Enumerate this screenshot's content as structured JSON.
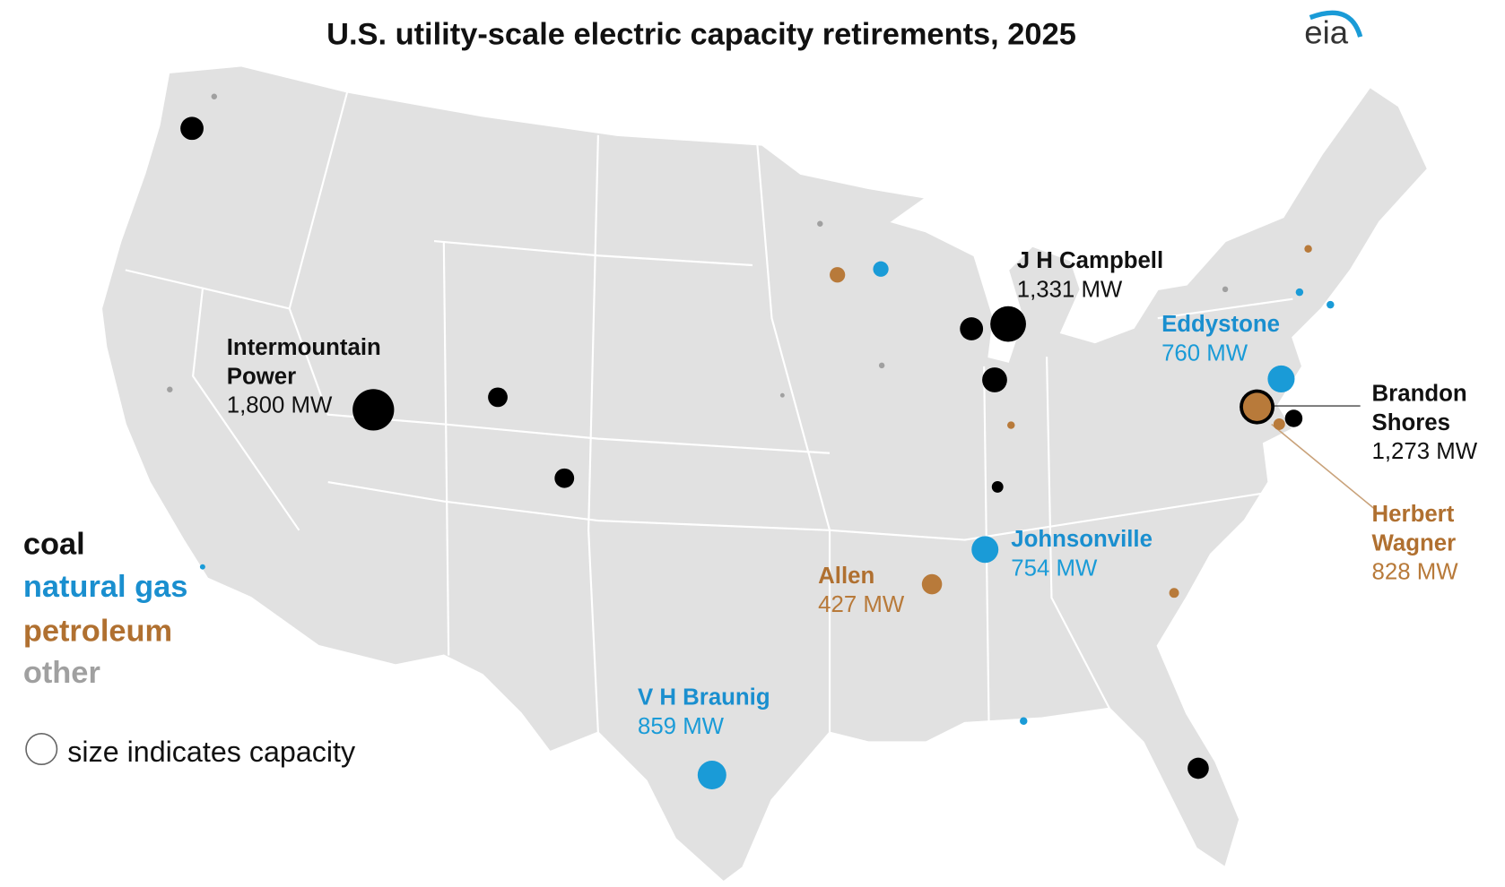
{
  "title": "U.S. utility-scale electric capacity retirements, 2025",
  "logo": "eia",
  "legend": {
    "fuels": [
      {
        "name": "coal",
        "color": "#000000"
      },
      {
        "name": "natural gas",
        "color": "#1a9bd7"
      },
      {
        "name": "petroleum",
        "color": "#b87a3a"
      },
      {
        "name": "other",
        "color": "#a0a0a0"
      }
    ],
    "size_note": "size indicates capacity"
  },
  "plants": [
    {
      "name": "Intermountain Power",
      "fuel": "coal",
      "capacity": 1800,
      "capacity_label": "1,800 MW"
    },
    {
      "name": "J H Campbell",
      "fuel": "coal",
      "capacity": 1331,
      "capacity_label": "1,331 MW"
    },
    {
      "name": "Eddystone",
      "fuel": "natural gas",
      "capacity": 760,
      "capacity_label": "760 MW"
    },
    {
      "name": "Brandon Shores",
      "fuel": "coal",
      "capacity": 1273,
      "capacity_label": "1,273 MW"
    },
    {
      "name": "Herbert Wagner",
      "fuel": "petroleum",
      "capacity": 828,
      "capacity_label": "828 MW"
    },
    {
      "name": "Johnsonville",
      "fuel": "natural gas",
      "capacity": 754,
      "capacity_label": "754 MW"
    },
    {
      "name": "Allen",
      "fuel": "petroleum",
      "capacity": 427,
      "capacity_label": "427 MW"
    },
    {
      "name": "V H Braunig",
      "fuel": "natural gas",
      "capacity": 859,
      "capacity_label": "859 MW"
    },
    {
      "fuel": "coal",
      "capacity": 560
    },
    {
      "fuel": "other",
      "capacity": 35
    },
    {
      "fuel": "other",
      "capacity": 35
    },
    {
      "fuel": "natural gas",
      "capacity": 30
    },
    {
      "fuel": "coal",
      "capacity": 400
    },
    {
      "fuel": "coal",
      "capacity": 400
    },
    {
      "fuel": "other",
      "capacity": 35
    },
    {
      "fuel": "petroleum",
      "capacity": 250
    },
    {
      "fuel": "natural gas",
      "capacity": 250
    },
    {
      "fuel": "other",
      "capacity": 35
    },
    {
      "fuel": "other",
      "capacity": 20
    },
    {
      "fuel": "coal",
      "capacity": 560
    },
    {
      "fuel": "coal",
      "capacity": 650
    },
    {
      "fuel": "petroleum",
      "capacity": 60
    },
    {
      "fuel": "coal",
      "capacity": 140
    },
    {
      "fuel": "coal",
      "capacity": 470
    },
    {
      "fuel": "natural gas",
      "capacity": 60
    },
    {
      "fuel": "petroleum",
      "capacity": 100
    },
    {
      "fuel": "other",
      "capacity": 35
    },
    {
      "fuel": "petroleum",
      "capacity": 60
    },
    {
      "fuel": "natural gas",
      "capacity": 60
    },
    {
      "fuel": "natural gas",
      "capacity": 60
    },
    {
      "fuel": "petroleum",
      "capacity": 140
    },
    {
      "fuel": "coal",
      "capacity": 320
    }
  ]
}
